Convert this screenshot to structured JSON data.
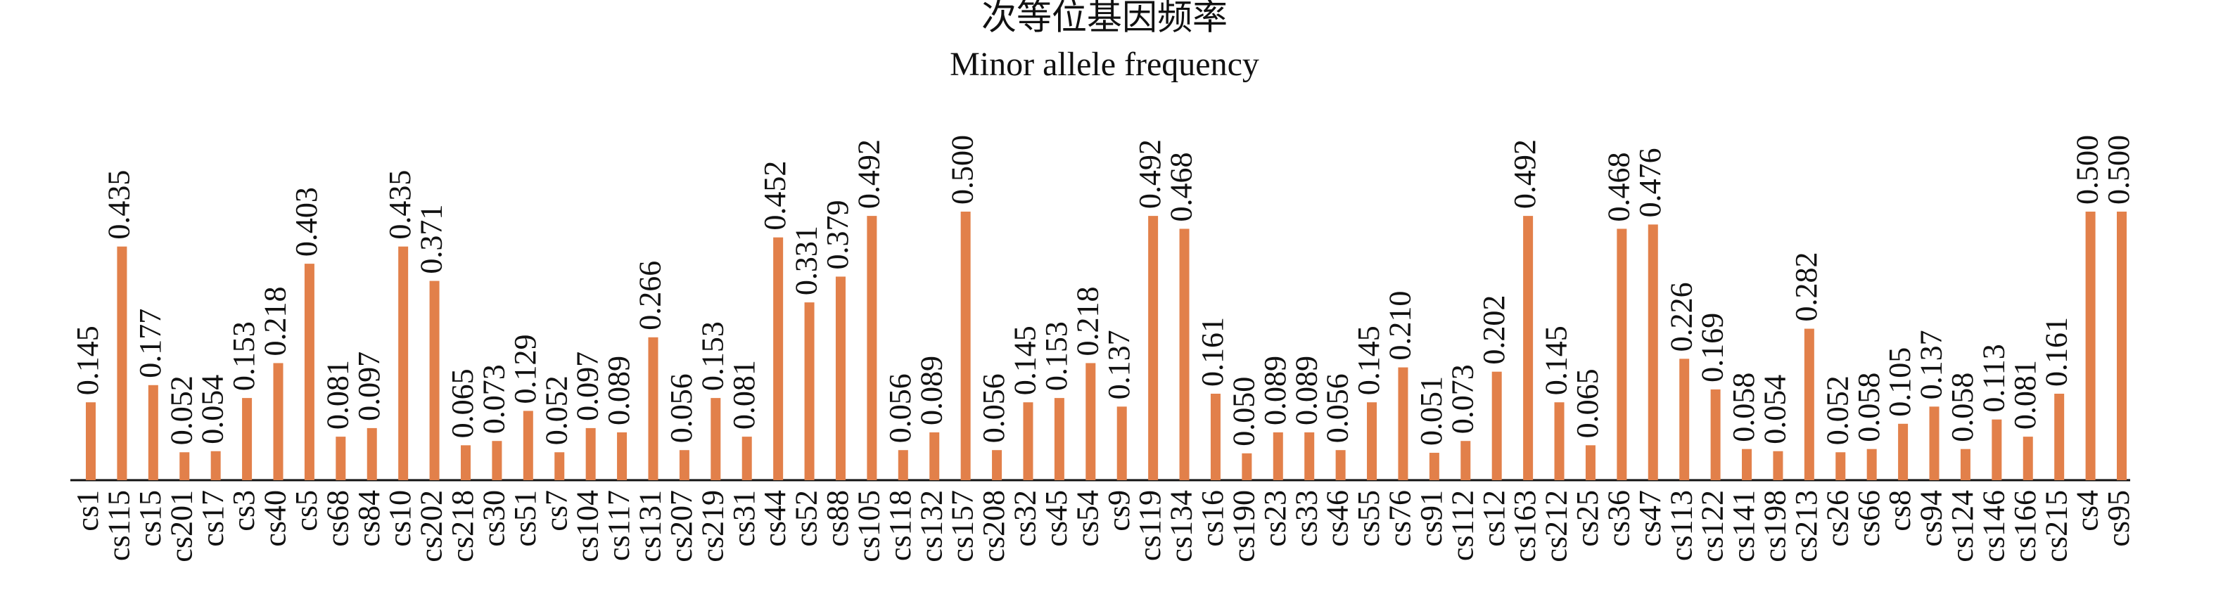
{
  "chart_data": {
    "type": "bar",
    "title": "次等位基因频率",
    "subtitle": "Minor allele frequency",
    "color": "#e2804a",
    "ylim": [
      0,
      0.5
    ],
    "categories": [
      "cs1",
      "cs115",
      "cs15",
      "cs201",
      "cs17",
      "cs3",
      "cs40",
      "cs5",
      "cs68",
      "cs84",
      "cs10",
      "cs202",
      "cs218",
      "cs30",
      "cs51",
      "cs7",
      "cs104",
      "cs117",
      "cs131",
      "cs207",
      "cs219",
      "cs31",
      "cs44",
      "cs52",
      "cs88",
      "cs105",
      "cs118",
      "cs132",
      "cs157",
      "cs208",
      "cs32",
      "cs45",
      "cs54",
      "cs9",
      "cs119",
      "cs134",
      "cs16",
      "cs190",
      "cs23",
      "cs33",
      "cs46",
      "cs55",
      "cs76",
      "cs91",
      "cs112",
      "cs12",
      "cs163",
      "cs212",
      "cs25",
      "cs36",
      "cs47",
      "cs113",
      "cs122",
      "cs141",
      "cs198",
      "cs213",
      "cs26",
      "cs66",
      "cs8",
      "cs94",
      "cs124",
      "cs146",
      "cs166",
      "cs215",
      "cs4",
      "cs95"
    ],
    "values": [
      0.145,
      0.435,
      0.177,
      0.052,
      0.054,
      0.153,
      0.218,
      0.403,
      0.081,
      0.097,
      0.435,
      0.371,
      0.065,
      0.073,
      0.129,
      0.052,
      0.097,
      0.089,
      0.266,
      0.056,
      0.153,
      0.081,
      0.452,
      0.331,
      0.379,
      0.492,
      0.056,
      0.089,
      0.5,
      0.056,
      0.145,
      0.153,
      0.218,
      0.137,
      0.492,
      0.468,
      0.161,
      0.05,
      0.089,
      0.089,
      0.056,
      0.145,
      0.21,
      0.051,
      0.073,
      0.202,
      0.492,
      0.145,
      0.065,
      0.468,
      0.476,
      0.226,
      0.169,
      0.058,
      0.054,
      0.282,
      0.052,
      0.058,
      0.105,
      0.137,
      0.058,
      0.113,
      0.081,
      0.161,
      0.5,
      0.5
    ],
    "value_labels": [
      "0.145",
      "0.435",
      "0.177",
      "0.052",
      "0.054",
      "0.153",
      "0.218",
      "0.403",
      "0.081",
      "0.097",
      "0.435",
      "0.371",
      "0.065",
      "0.073",
      "0.129",
      "0.052",
      "0.097",
      "0.089",
      "0.266",
      "0.056",
      "0.153",
      "0.081",
      "0.452",
      "0.331",
      "0.379",
      "0.492",
      "0.056",
      "0.089",
      "0.500",
      "0.056",
      "0.145",
      "0.153",
      "0.218",
      "0.137",
      "0.492",
      "0.468",
      "0.161",
      "0.050",
      "0.089",
      "0.089",
      "0.056",
      "0.145",
      "0.210",
      "0.051",
      "0.073",
      "0.202",
      "0.492",
      "0.145",
      "0.065",
      "0.468",
      "0.476",
      "0.226",
      "0.169",
      "0.058",
      "0.054",
      "0.282",
      "0.052",
      "0.058",
      "0.105",
      "0.137",
      "0.058",
      "0.113",
      "0.081",
      "0.161",
      "0.500",
      "0.500"
    ]
  }
}
